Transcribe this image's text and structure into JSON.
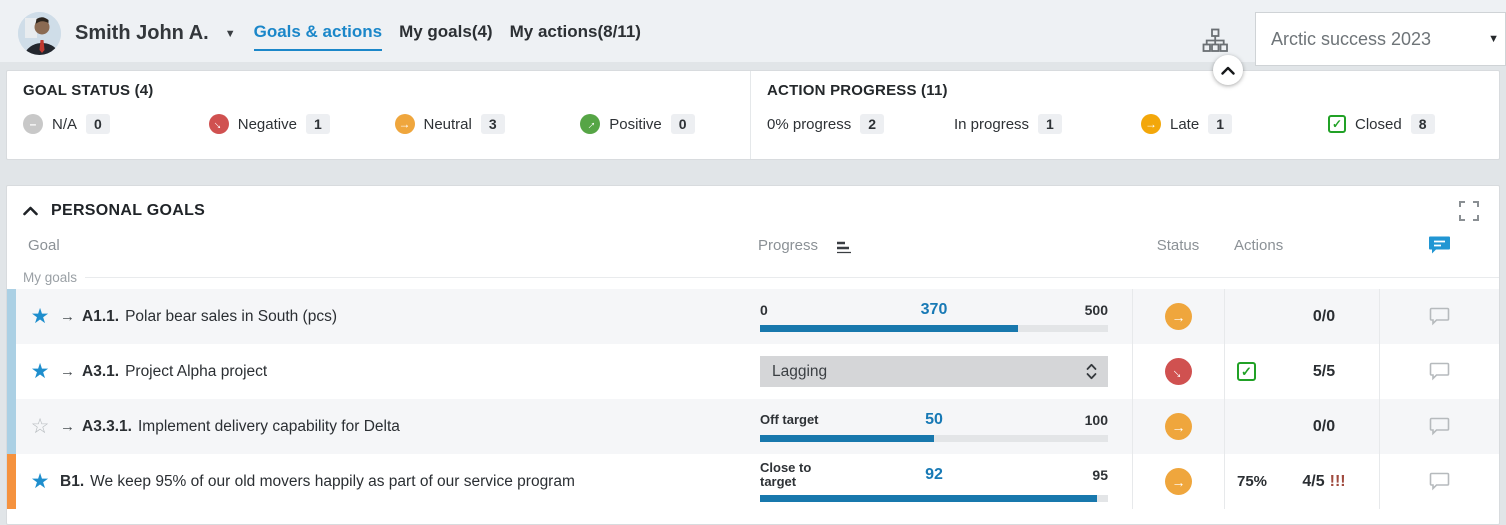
{
  "header": {
    "user_name": "Smith John A.",
    "tabs": [
      {
        "label": "Goals & actions",
        "active": true
      },
      {
        "label": "My goals(4)",
        "active": false
      },
      {
        "label": "My actions(8/11)",
        "active": false
      }
    ],
    "project_selector": {
      "value": "Arctic success 2023"
    }
  },
  "colors": {
    "accent_blue": "#1b87c9",
    "bar_blue": "#1878ad",
    "value_blue": "#1779b5",
    "neutral": "#efa63d",
    "negative": "#d05150",
    "positive": "#56a546",
    "na": "#c8c8c8",
    "late": "#f3a70a",
    "closed_green": "#21a126",
    "strip_blue": "#abd0e4",
    "strip_orange": "#f5923e"
  },
  "summary": {
    "goal_status": {
      "title": "GOAL STATUS (4)",
      "items": [
        {
          "label": "N/A",
          "count": "0",
          "icon": "minus",
          "color": "#c8c8c8"
        },
        {
          "label": "Negative",
          "count": "1",
          "icon": "arrow-down",
          "color": "#d05150"
        },
        {
          "label": "Neutral",
          "count": "3",
          "icon": "arrow-right",
          "color": "#efa63d"
        },
        {
          "label": "Positive",
          "count": "0",
          "icon": "arrow-up",
          "color": "#56a546"
        }
      ]
    },
    "action_progress": {
      "title": "ACTION PROGRESS (11)",
      "items": [
        {
          "label": "0% progress",
          "count": "2",
          "icon": "none",
          "color": ""
        },
        {
          "label": "In progress",
          "count": "1",
          "icon": "none",
          "color": ""
        },
        {
          "label": "Late",
          "count": "1",
          "icon": "dot",
          "color": "#f3a70a"
        },
        {
          "label": "Closed",
          "count": "8",
          "icon": "checkbox",
          "color": "#21a126"
        }
      ]
    }
  },
  "personal_goals": {
    "title": "PERSONAL GOALS",
    "columns": {
      "goal": "Goal",
      "progress": "Progress",
      "status": "Status",
      "actions": "Actions"
    },
    "group_label": "My goals",
    "rows": [
      {
        "id": "A1.1.",
        "title": "Polar bear sales in South (pcs)",
        "star": "filled",
        "cascade": true,
        "accent": "blue",
        "shade": true,
        "progress": {
          "type": "bar",
          "left": "0",
          "value": "370",
          "max": "500",
          "percent": 74
        },
        "status": "neutral",
        "actions": {
          "checkbox": false,
          "percent": "",
          "count": "0/0",
          "alert": ""
        }
      },
      {
        "id": "A3.1.",
        "title": "Project Alpha project",
        "star": "filled",
        "cascade": true,
        "accent": "blue",
        "shade": false,
        "progress": {
          "type": "select",
          "value": "Lagging"
        },
        "status": "negative",
        "actions": {
          "checkbox": true,
          "percent": "",
          "count": "5/5",
          "alert": ""
        }
      },
      {
        "id": "A3.3.1.",
        "title": "Implement delivery capability for Delta",
        "star": "outline",
        "cascade": true,
        "accent": "blue",
        "shade": true,
        "progress": {
          "type": "bar",
          "left": "Off target",
          "value": "50",
          "max": "100",
          "percent": 50
        },
        "status": "neutral",
        "actions": {
          "checkbox": false,
          "percent": "",
          "count": "0/0",
          "alert": ""
        }
      },
      {
        "id": "B1.",
        "title": "We keep 95% of our old movers happily as part of our service program",
        "star": "filled",
        "cascade": false,
        "accent": "orange",
        "shade": false,
        "progress": {
          "type": "bar",
          "left": "Close to target",
          "value": "92",
          "max": "95",
          "percent": 96.8
        },
        "status": "neutral",
        "actions": {
          "checkbox": false,
          "percent": "75%",
          "count": "4/5",
          "alert": "!!!"
        }
      }
    ]
  }
}
